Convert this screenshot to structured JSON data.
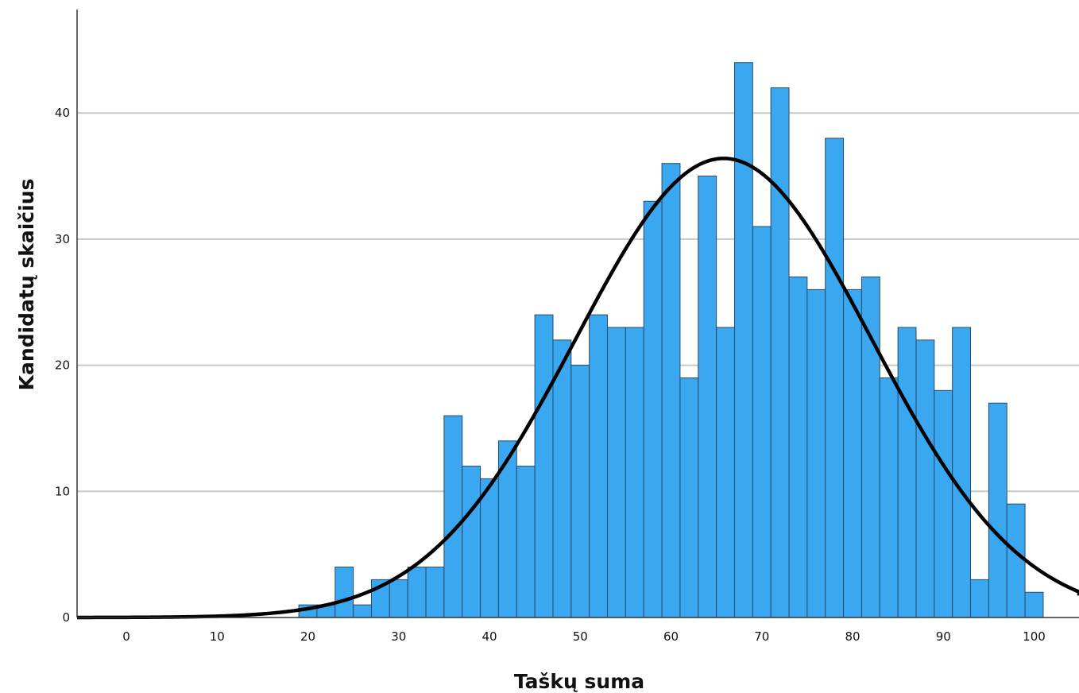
{
  "chart_data": {
    "type": "bar",
    "subtype": "histogram",
    "xlabel": "Taškų suma",
    "ylabel": "Kandidatų skaičius",
    "xlim": [
      -5,
      105
    ],
    "ylim": [
      0,
      48
    ],
    "x_ticks": [
      0,
      10,
      20,
      30,
      40,
      50,
      60,
      70,
      80,
      90,
      100
    ],
    "y_ticks": [
      0,
      10,
      20,
      30,
      40
    ],
    "grid": "horizontal",
    "bar_color": "#3aa8f0",
    "bin_width": 2,
    "bin_starts": [
      19,
      21,
      23,
      25,
      27,
      29,
      31,
      33,
      35,
      37,
      39,
      41,
      43,
      45,
      47,
      49,
      51,
      53,
      55,
      57,
      59,
      61,
      63,
      65,
      67,
      69,
      71,
      73,
      75,
      77,
      79,
      81,
      83,
      85,
      87,
      89,
      91,
      93,
      95,
      97,
      99
    ],
    "values": [
      1,
      1,
      4,
      1,
      3,
      3,
      4,
      4,
      16,
      12,
      11,
      14,
      12,
      24,
      22,
      20,
      24,
      23,
      23,
      33,
      36,
      19,
      35,
      23,
      44,
      31,
      42,
      27,
      26,
      38,
      26,
      27,
      19,
      23,
      22,
      18,
      23,
      3,
      17,
      9,
      2
    ],
    "normal_curve": {
      "mean": 65.8,
      "sd": 16.3,
      "peak": 36.4,
      "color": "#000000"
    }
  }
}
